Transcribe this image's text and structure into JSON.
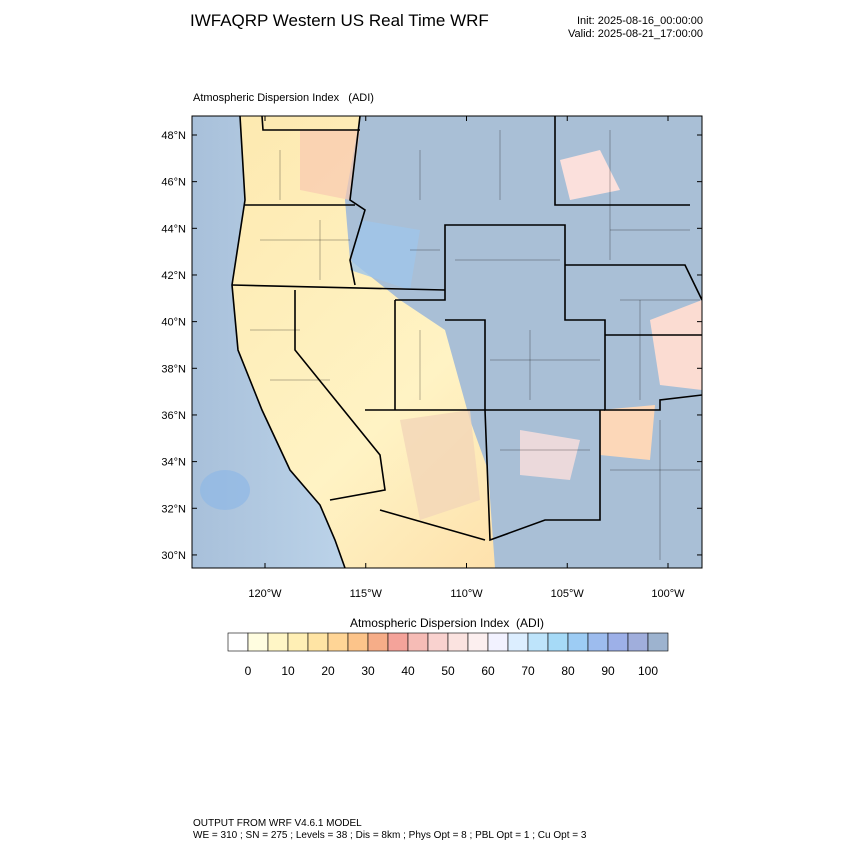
{
  "header": {
    "title": "IWFAQRP Western US Real Time WRF",
    "init": "Init: 2025-08-16_00:00:00",
    "valid": "Valid: 2025-08-21_17:00:00"
  },
  "map": {
    "title": "Atmospheric Dispersion Index   (ADI)",
    "lat_ticks": [
      {
        "value": 48,
        "label": "48°N"
      },
      {
        "value": 46,
        "label": "46°N"
      },
      {
        "value": 44,
        "label": "44°N"
      },
      {
        "value": 42,
        "label": "42°N"
      },
      {
        "value": 40,
        "label": "40°N"
      },
      {
        "value": 38,
        "label": "38°N"
      },
      {
        "value": 36,
        "label": "36°N"
      },
      {
        "value": 34,
        "label": "34°N"
      },
      {
        "value": 32,
        "label": "32°N"
      },
      {
        "value": 30,
        "label": "30°N"
      }
    ],
    "lon_ticks": [
      {
        "value": -120,
        "label": "120°W"
      },
      {
        "value": -115,
        "label": "115°W"
      },
      {
        "value": -110,
        "label": "110°W"
      },
      {
        "value": -105,
        "label": "105°W"
      },
      {
        "value": -100,
        "label": "100°W"
      }
    ]
  },
  "colorbar": {
    "title": "Atmospheric Dispersion Index  (ADI)",
    "ticks": [
      0,
      10,
      20,
      30,
      40,
      50,
      60,
      70,
      80,
      90,
      100
    ],
    "colors": [
      "#ffffff",
      "#fffde0",
      "#fff6c6",
      "#ffefb5",
      "#ffe4a4",
      "#ffd596",
      "#fcc48a",
      "#f6ad88",
      "#f4a39a",
      "#f6bcb6",
      "#f9d2cf",
      "#fbe3e0",
      "#fcefef",
      "#f2f2ff",
      "#dceeff",
      "#bee4fb",
      "#a6daf7",
      "#9dccf4",
      "#9dbcee",
      "#9db0e8",
      "#a0aedc",
      "#9db3cf"
    ]
  },
  "footer": {
    "line1": "OUTPUT FROM WRF V4.6.1 MODEL",
    "line2": "WE = 310 ; SN = 275 ; Levels = 38 ; Dis = 8km ; Phys Opt = 8 ; PBL Opt = 1 ; Cu Opt = 3"
  }
}
